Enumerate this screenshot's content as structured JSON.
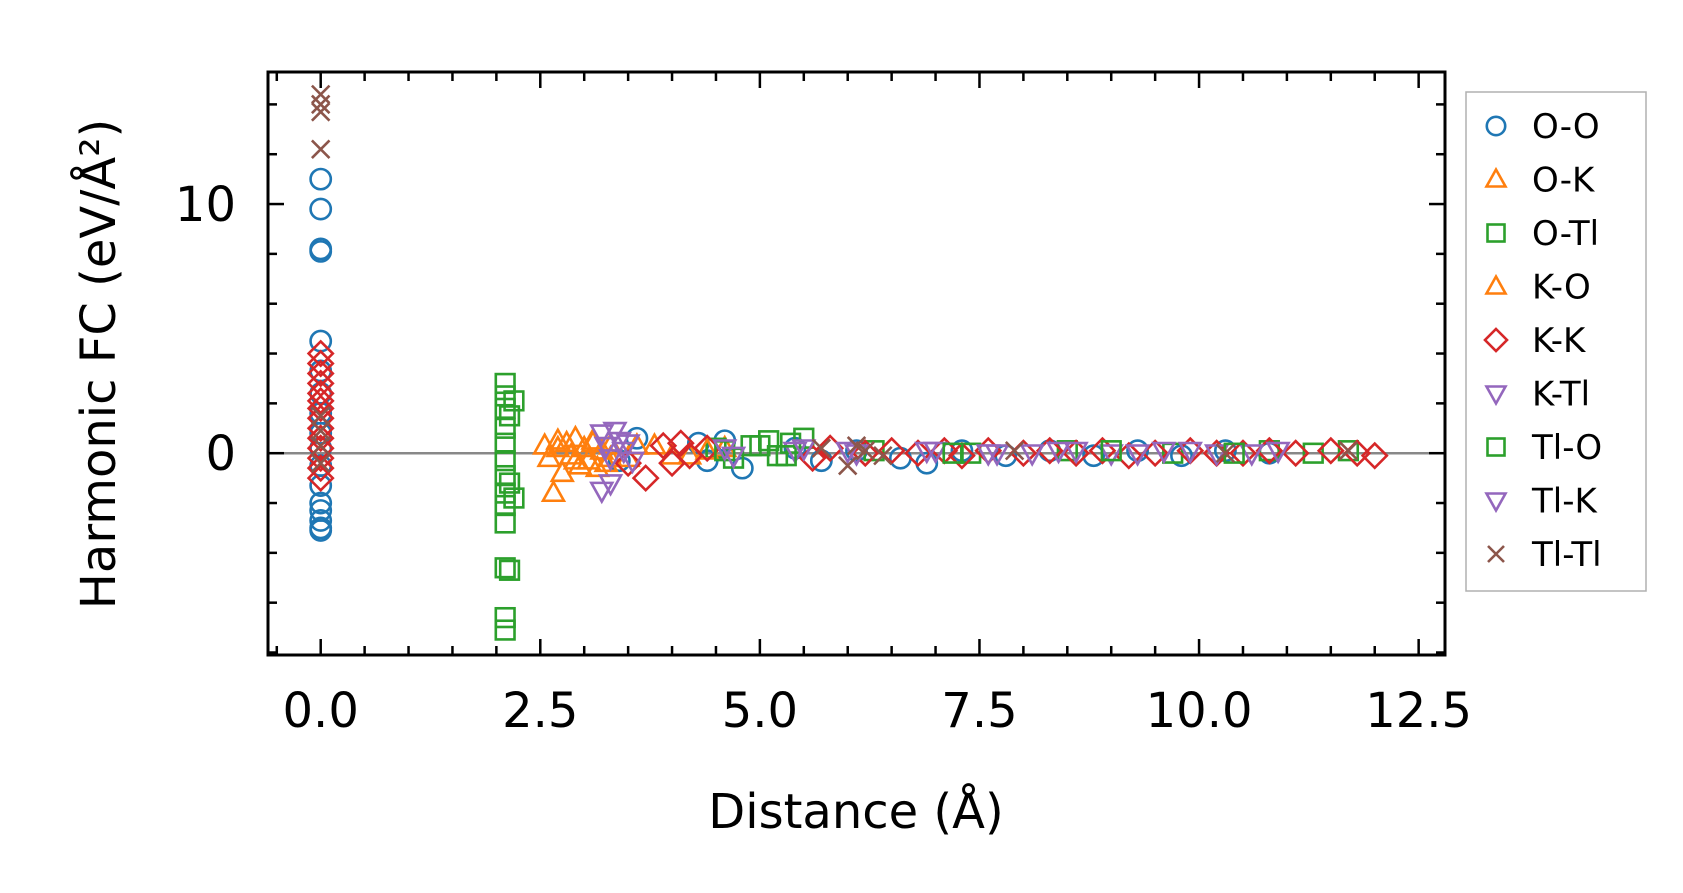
{
  "chart_data": {
    "type": "scatter",
    "title": "",
    "xlabel": "Distance (Å)",
    "ylabel": "Harmonic FC (eV/Å²)",
    "xlim": [
      -0.6,
      12.8
    ],
    "ylim": [
      -8.1,
      15.3
    ],
    "xticks": [
      0.0,
      2.5,
      5.0,
      7.5,
      10.0,
      12.5
    ],
    "xtick_labels": [
      "0.0",
      "2.5",
      "5.0",
      "7.5",
      "10.0",
      "12.5"
    ],
    "yticks": [
      0,
      10
    ],
    "ytick_labels": [
      "0",
      "10"
    ],
    "reference_line_y": 0,
    "legend_position": "outside-right",
    "series": [
      {
        "name": "O-O",
        "marker": "circle",
        "color": "#1f77b4",
        "points": [
          [
            0,
            11.0
          ],
          [
            0,
            9.8
          ],
          [
            0,
            8.2
          ],
          [
            0,
            8.1
          ],
          [
            0,
            4.5
          ],
          [
            0,
            3.3
          ],
          [
            0,
            2.4
          ],
          [
            0,
            1.6
          ],
          [
            0,
            0.8
          ],
          [
            0,
            0.2
          ],
          [
            0,
            -0.5
          ],
          [
            0,
            -1.3
          ],
          [
            0,
            -2.0
          ],
          [
            0,
            -2.3
          ],
          [
            0,
            -2.7
          ],
          [
            0,
            -3.0
          ],
          [
            0,
            -3.1
          ],
          [
            3.4,
            -0.3
          ],
          [
            3.6,
            0.6
          ],
          [
            4.3,
            0.4
          ],
          [
            4.4,
            -0.3
          ],
          [
            4.6,
            0.5
          ],
          [
            4.8,
            -0.6
          ],
          [
            5.4,
            0.2
          ],
          [
            5.7,
            -0.3
          ],
          [
            6.1,
            0.1
          ],
          [
            6.6,
            -0.2
          ],
          [
            6.9,
            -0.4
          ],
          [
            7.3,
            0.1
          ],
          [
            7.8,
            -0.1
          ],
          [
            8.3,
            0.1
          ],
          [
            8.8,
            -0.1
          ],
          [
            9.3,
            0.1
          ],
          [
            9.8,
            -0.1
          ],
          [
            10.3,
            0.1
          ],
          [
            10.8,
            0.0
          ]
        ]
      },
      {
        "name": "O-K",
        "marker": "triangle-up",
        "color": "#ff7f0e",
        "points": [
          [
            2.55,
            0.3
          ],
          [
            2.6,
            -0.2
          ],
          [
            2.65,
            -1.6
          ],
          [
            2.7,
            0.5
          ],
          [
            2.75,
            -0.8
          ],
          [
            2.8,
            0.4
          ],
          [
            2.85,
            -0.1
          ],
          [
            2.9,
            0.6
          ],
          [
            2.95,
            -0.5
          ],
          [
            3.0,
            0.2
          ],
          [
            3.05,
            -0.3
          ],
          [
            3.1,
            0.5
          ],
          [
            3.15,
            -0.6
          ],
          [
            3.2,
            0.1
          ],
          [
            3.25,
            -0.4
          ],
          [
            3.3,
            0.3
          ],
          [
            3.5,
            -0.2
          ],
          [
            3.8,
            0.3
          ],
          [
            4.2,
            -0.1
          ],
          [
            4.6,
            0.2
          ]
        ]
      },
      {
        "name": "O-Tl",
        "marker": "square",
        "color": "#2ca02c",
        "points": [
          [
            2.1,
            2.8
          ],
          [
            2.1,
            2.3
          ],
          [
            2.1,
            1.8
          ],
          [
            2.1,
            1.0
          ],
          [
            2.1,
            0.4
          ],
          [
            2.1,
            -0.3
          ],
          [
            2.1,
            -0.9
          ],
          [
            2.1,
            -1.6
          ],
          [
            2.1,
            -2.1
          ],
          [
            2.1,
            -2.8
          ],
          [
            2.1,
            -4.6
          ],
          [
            2.1,
            -6.6
          ],
          [
            2.1,
            -7.1
          ],
          [
            2.15,
            1.5
          ],
          [
            2.15,
            -1.2
          ],
          [
            2.15,
            -4.7
          ],
          [
            4.5,
            0.2
          ],
          [
            4.7,
            -0.2
          ],
          [
            4.9,
            0.3
          ],
          [
            5.1,
            0.5
          ],
          [
            5.2,
            -0.1
          ],
          [
            5.35,
            0.4
          ],
          [
            5.5,
            0.6
          ],
          [
            6.3,
            0.1
          ],
          [
            7.4,
            0.0
          ],
          [
            8.5,
            0.1
          ],
          [
            9.7,
            0.0
          ],
          [
            10.8,
            0.1
          ],
          [
            11.3,
            0.0
          ],
          [
            11.7,
            0.1
          ]
        ]
      },
      {
        "name": "K-O",
        "marker": "triangle-up",
        "color": "#ff7f0e",
        "points": [
          [
            2.7,
            0.2
          ],
          [
            2.9,
            -0.3
          ],
          [
            3.1,
            0.4
          ],
          [
            3.3,
            -0.2
          ],
          [
            3.6,
            0.3
          ],
          [
            4.0,
            -0.1
          ],
          [
            4.4,
            0.1
          ]
        ]
      },
      {
        "name": "K-K",
        "marker": "diamond",
        "color": "#d62728",
        "points": [
          [
            0,
            4.0
          ],
          [
            0,
            3.6
          ],
          [
            0,
            3.2
          ],
          [
            0,
            2.8
          ],
          [
            0,
            2.4
          ],
          [
            0,
            2.1
          ],
          [
            0,
            1.8
          ],
          [
            0,
            1.4
          ],
          [
            0,
            1.0
          ],
          [
            0,
            0.6
          ],
          [
            0,
            0.2
          ],
          [
            0,
            -0.2
          ],
          [
            0,
            -0.6
          ],
          [
            0,
            -1.0
          ],
          [
            3.5,
            -0.4
          ],
          [
            3.7,
            -1.0
          ],
          [
            3.9,
            0.3
          ],
          [
            4.0,
            -0.4
          ],
          [
            4.1,
            0.4
          ],
          [
            4.2,
            -0.1
          ],
          [
            4.4,
            0.2
          ],
          [
            5.6,
            -0.2
          ],
          [
            5.8,
            0.2
          ],
          [
            6.2,
            0.0
          ],
          [
            6.5,
            0.1
          ],
          [
            6.8,
            0.0
          ],
          [
            7.1,
            0.1
          ],
          [
            7.3,
            -0.1
          ],
          [
            7.6,
            0.1
          ],
          [
            8.0,
            0.0
          ],
          [
            8.3,
            0.1
          ],
          [
            8.6,
            0.0
          ],
          [
            8.9,
            0.1
          ],
          [
            9.2,
            -0.1
          ],
          [
            9.5,
            0.0
          ],
          [
            9.9,
            0.1
          ],
          [
            10.2,
            0.0
          ],
          [
            10.5,
            0.0
          ],
          [
            10.8,
            0.1
          ],
          [
            11.1,
            0.0
          ],
          [
            11.5,
            0.1
          ],
          [
            11.8,
            0.0
          ],
          [
            12.0,
            -0.1
          ]
        ]
      },
      {
        "name": "K-Tl",
        "marker": "triangle-down",
        "color": "#9467bd",
        "points": [
          [
            3.2,
            -1.5
          ],
          [
            3.3,
            -1.2
          ],
          [
            5.4,
            0.1
          ],
          [
            6.0,
            0.1
          ],
          [
            7.0,
            0.1
          ],
          [
            7.6,
            0.0
          ],
          [
            8.1,
            0.0
          ],
          [
            8.6,
            0.1
          ],
          [
            9.0,
            0.0
          ],
          [
            9.6,
            0.1
          ],
          [
            10.2,
            0.0
          ],
          [
            10.6,
            0.0
          ],
          [
            10.9,
            0.1
          ]
        ]
      },
      {
        "name": "Tl-O",
        "marker": "square",
        "color": "#2ca02c",
        "points": [
          [
            2.2,
            2.1
          ],
          [
            2.2,
            -1.8
          ],
          [
            4.6,
            0.1
          ],
          [
            5.0,
            0.3
          ],
          [
            5.3,
            -0.1
          ],
          [
            7.2,
            0.0
          ],
          [
            9.0,
            0.1
          ],
          [
            10.4,
            0.0
          ]
        ]
      },
      {
        "name": "Tl-K",
        "marker": "triangle-down",
        "color": "#9467bd",
        "points": [
          [
            3.2,
            0.8
          ],
          [
            3.25,
            0.3
          ],
          [
            3.3,
            -0.2
          ],
          [
            3.35,
            0.9
          ],
          [
            3.4,
            0.5
          ],
          [
            3.45,
            0.1
          ],
          [
            3.5,
            0.4
          ],
          [
            3.55,
            -0.3
          ],
          [
            4.6,
            0.2
          ],
          [
            4.7,
            -0.1
          ],
          [
            5.5,
            0.2
          ],
          [
            6.1,
            0.0
          ],
          [
            6.9,
            0.1
          ],
          [
            7.7,
            0.0
          ],
          [
            8.4,
            0.1
          ],
          [
            9.3,
            0.0
          ],
          [
            9.9,
            0.1
          ]
        ]
      },
      {
        "name": "Tl-Tl",
        "marker": "x",
        "color": "#8c564b",
        "points": [
          [
            0,
            14.4
          ],
          [
            0,
            14.0
          ],
          [
            0,
            13.7
          ],
          [
            0,
            12.2
          ],
          [
            0,
            1.5
          ],
          [
            0,
            0.9
          ],
          [
            0,
            0.3
          ],
          [
            0,
            -0.4
          ],
          [
            5.7,
            0.2
          ],
          [
            6.0,
            -0.5
          ],
          [
            6.1,
            0.3
          ],
          [
            6.2,
            0.1
          ],
          [
            6.4,
            -0.1
          ],
          [
            7.9,
            0.1
          ],
          [
            10.3,
            0.0
          ],
          [
            11.7,
            0.1
          ]
        ]
      }
    ]
  }
}
